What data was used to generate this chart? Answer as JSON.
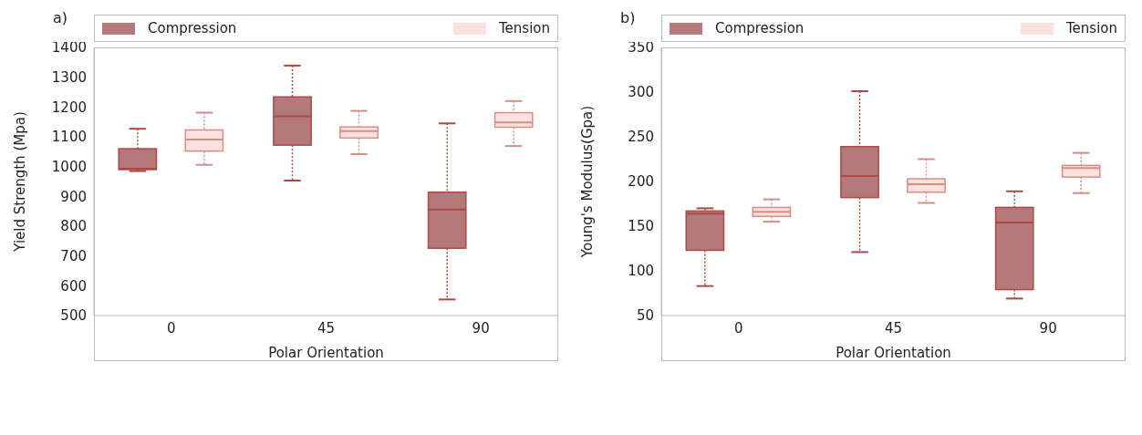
{
  "chart_data": [
    {
      "type": "box",
      "title": "a)",
      "xlabel": "Polar Orientation",
      "ylabel": "Yield Strength (Mpa)",
      "categories": [
        "0",
        "45",
        "90"
      ],
      "ylim": [
        500,
        1400
      ],
      "yticks": [
        500,
        600,
        700,
        800,
        900,
        1000,
        1100,
        1200,
        1300,
        1400
      ],
      "grid": false,
      "legend": "top",
      "series": [
        {
          "name": "Compression",
          "color": "#b5797c",
          "boxes": [
            {
              "low": 985,
              "q1": 990,
              "median": 993,
              "q3": 1060,
              "high": 1127
            },
            {
              "low": 953,
              "q1": 1072,
              "median": 1169,
              "q3": 1234,
              "high": 1339
            },
            {
              "low": 554,
              "q1": 726,
              "median": 856,
              "q3": 914,
              "high": 1145
            }
          ]
        },
        {
          "name": "Tension",
          "color": "#fde1dd",
          "boxes": [
            {
              "low": 1006,
              "q1": 1052,
              "median": 1091,
              "q3": 1123,
              "high": 1181
            },
            {
              "low": 1042,
              "q1": 1096,
              "median": 1119,
              "q3": 1133,
              "high": 1187
            },
            {
              "low": 1069,
              "q1": 1132,
              "median": 1148,
              "q3": 1181,
              "high": 1220
            }
          ]
        }
      ]
    },
    {
      "type": "box",
      "title": "b)",
      "xlabel": "Polar Orientation",
      "ylabel": "Young's Modulus(Gpa)",
      "categories": [
        "0",
        "45",
        "90"
      ],
      "ylim": [
        50,
        350
      ],
      "yticks": [
        50,
        100,
        150,
        200,
        250,
        300,
        350
      ],
      "grid": false,
      "legend": "top",
      "series": [
        {
          "name": "Compression",
          "color": "#b5797c",
          "boxes": [
            {
              "low": 83,
              "q1": 123,
              "median": 164,
              "q3": 167,
              "high": 170
            },
            {
              "low": 121,
              "q1": 182,
              "median": 206,
              "q3": 239,
              "high": 301
            },
            {
              "low": 69,
              "q1": 79,
              "median": 154,
              "q3": 171,
              "high": 189
            }
          ]
        },
        {
          "name": "Tension",
          "color": "#fde1dd",
          "boxes": [
            {
              "low": 155,
              "q1": 161,
              "median": 166,
              "q3": 171,
              "high": 180
            },
            {
              "low": 176,
              "q1": 188,
              "median": 197,
              "q3": 203,
              "high": 225
            },
            {
              "low": 187,
              "q1": 205,
              "median": 215,
              "q3": 218,
              "high": 232
            }
          ]
        }
      ]
    }
  ]
}
